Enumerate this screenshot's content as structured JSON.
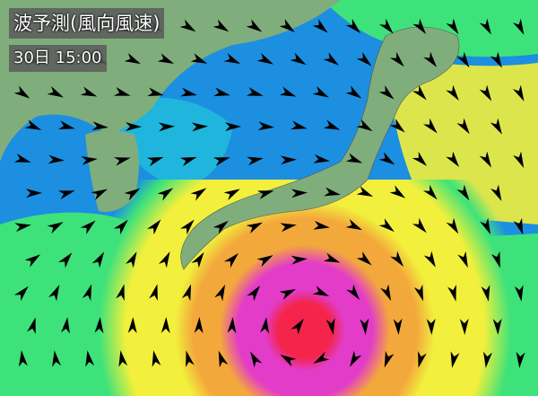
{
  "header": {
    "title": "波予測(風向風速)",
    "time": "30日 15:00"
  },
  "map": {
    "type": "wave forecast with wind direction arrows",
    "colors": {
      "land": "#7fae7c",
      "ocean_low": "#1c8fe0",
      "ocean_mid": "#22c4dc",
      "green": "#3ee27a",
      "yellow": "#f2f03c",
      "orange": "#f3a83c",
      "magenta": "#e23cc8",
      "red": "#f4244a"
    }
  }
}
